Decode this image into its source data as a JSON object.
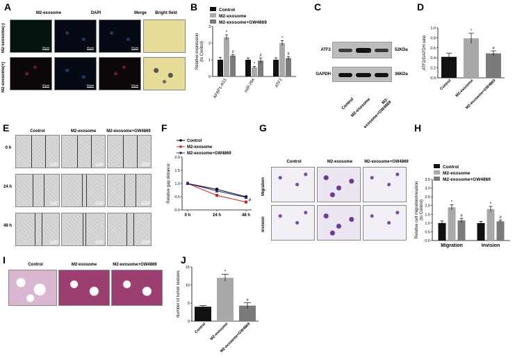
{
  "panels": {
    "A": {
      "label": "A",
      "columns": [
        "M2-exosome",
        "DAPI",
        "Merge",
        "Bright field"
      ],
      "rows": [
        "M2-exosome(-)",
        "M2-exosome(+)"
      ],
      "scale": "50μm"
    },
    "C": {
      "label": "C",
      "bands": [
        "ATF2",
        "GAPDH"
      ],
      "sizes": [
        "52KDa",
        "36KDa"
      ],
      "lanes": [
        "Control",
        "M2-exosome",
        "M2-exosome+GW4869"
      ]
    },
    "E": {
      "label": "E",
      "columns": [
        "Control",
        "M2-exosome",
        "M2-exosome+GW4869"
      ],
      "rows": [
        "0 h",
        "24 h",
        "48 h"
      ],
      "scale": "100μm"
    },
    "G": {
      "label": "G",
      "columns": [
        "Control",
        "M2-exosome",
        "M2-exosome+GW4869"
      ],
      "rows": [
        "Migration",
        "Invision"
      ]
    },
    "I": {
      "label": "I",
      "columns": [
        "Control",
        "M2-exosome",
        "M2-exosome+GW4869"
      ]
    }
  },
  "colors": {
    "control": "#111111",
    "m2": "#a9a9a9",
    "gw": "#7a7a7a",
    "line_control": "#000000",
    "line_m2": "#cc2222",
    "line_gw": "#2a2a7a"
  },
  "chart_data": [
    {
      "panel": "B",
      "type": "bar",
      "ylabel": "Relative expression\n(to Control)",
      "categories": [
        "AFAP1-AS1",
        "miR-26a",
        "ATF2"
      ],
      "series": [
        {
          "name": "Control",
          "values": [
            1.0,
            1.0,
            1.0
          ],
          "err": [
            0.15,
            0.1,
            0.1
          ]
        },
        {
          "name": "M2-exosome",
          "values": [
            2.35,
            0.55,
            2.0
          ],
          "err": [
            0.15,
            0.06,
            0.15
          ]
        },
        {
          "name": "M2-exosome+GW4869",
          "values": [
            1.25,
            0.95,
            1.1
          ],
          "err": [
            0.06,
            0.15,
            0.1
          ]
        }
      ],
      "annotations": [
        [
          "",
          "*",
          "#"
        ],
        [
          "",
          "*",
          "#"
        ],
        [
          "",
          "*",
          "#"
        ]
      ],
      "yticks": [
        0,
        1,
        2,
        3
      ],
      "ylim": [
        0,
        3
      ]
    },
    {
      "panel": "D",
      "type": "bar",
      "ylabel": "ATF2/GAPDH ratio",
      "categories": [
        "Control",
        "M2-exosome",
        "M2-exosome+GW4869"
      ],
      "values": [
        0.42,
        0.79,
        0.49
      ],
      "err": [
        0.07,
        0.1,
        0.05
      ],
      "annotations": [
        "",
        "*",
        "#"
      ],
      "yticks": [
        0.0,
        0.2,
        0.4,
        0.6,
        0.8,
        1.0
      ],
      "ylim": [
        0,
        1.0
      ]
    },
    {
      "panel": "F",
      "type": "line",
      "ylabel": "Relative gap distance",
      "x": [
        "0 h",
        "24 h",
        "48 h"
      ],
      "series": [
        {
          "name": "Control",
          "values": [
            1.0,
            0.78,
            0.5
          ],
          "err": [
            0.05,
            0.05,
            0.04
          ]
        },
        {
          "name": "M2-exosome",
          "values": [
            1.0,
            0.55,
            0.3
          ],
          "err": [
            0.05,
            0.04,
            0.03
          ]
        },
        {
          "name": "M2-exosome+GW4869",
          "values": [
            1.0,
            0.72,
            0.47
          ],
          "err": [
            0.05,
            0.05,
            0.04
          ]
        }
      ],
      "annotations": [
        "",
        "*",
        "#"
      ],
      "yticks": [
        0.0,
        0.5,
        1.0,
        1.5,
        2.0
      ],
      "ylim": [
        0,
        2.0
      ]
    },
    {
      "panel": "H",
      "type": "bar",
      "ylabel": "Relative cell migration/invasion\n(to Control)",
      "categories": [
        "Migration",
        "Invision"
      ],
      "series": [
        {
          "name": "Control",
          "values": [
            1.0,
            1.0
          ],
          "err": [
            0.12,
            0.1
          ]
        },
        {
          "name": "M2-exosome",
          "values": [
            1.9,
            1.8
          ],
          "err": [
            0.15,
            0.15
          ]
        },
        {
          "name": "M2-exosome+GW4869",
          "values": [
            1.15,
            1.1
          ],
          "err": [
            0.12,
            0.08
          ]
        }
      ],
      "annotations": [
        [
          "",
          "*",
          "#"
        ],
        [
          "",
          "*",
          "#"
        ]
      ],
      "yticks": [
        0.0,
        0.5,
        1.0,
        1.5,
        2.0,
        2.5,
        3.0,
        3.5
      ],
      "ylim": [
        0,
        3.5
      ]
    },
    {
      "panel": "J",
      "type": "bar",
      "ylabel": "Number of tumor nodules",
      "categories": [
        "Control",
        "M2-exosome",
        "M2-exosome+GW4869"
      ],
      "values": [
        4.0,
        12.0,
        4.3
      ],
      "err": [
        0.3,
        1.0,
        0.8
      ],
      "annotations": [
        "",
        "*",
        "#"
      ],
      "yticks": [
        0,
        5,
        10,
        15
      ],
      "ylim": [
        0,
        15
      ]
    }
  ]
}
